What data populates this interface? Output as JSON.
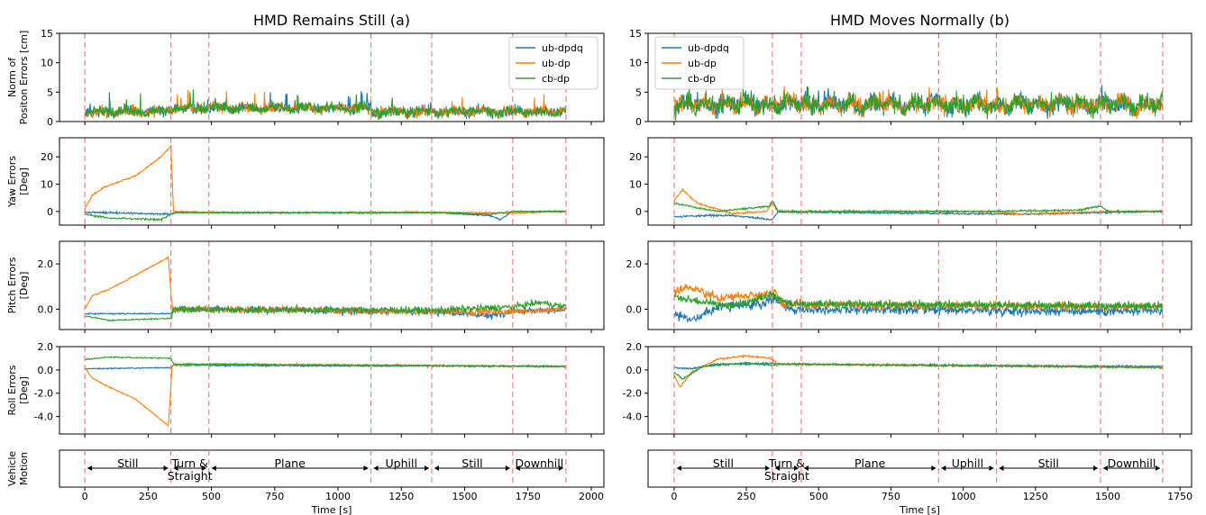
{
  "chart_data": {
    "type": "line",
    "columns": [
      {
        "title": "HMD Remains Still (a)",
        "xlim": [
          -100,
          2050
        ],
        "xticks": [
          0,
          250,
          500,
          750,
          1000,
          1250,
          1500,
          1750,
          2000
        ],
        "xlabel": "Time [s]",
        "boundaries": [
          0,
          340,
          490,
          1130,
          1370,
          1690,
          1900
        ],
        "segments": [
          "Still",
          "Turn & Straight",
          "Plane",
          "Uphill",
          "Still",
          "Downhill"
        ],
        "legend_position": "top-right"
      },
      {
        "title": "HMD Moves Normally (b)",
        "xlim": [
          -90,
          1790
        ],
        "xticks": [
          0,
          250,
          500,
          750,
          1000,
          1250,
          1500,
          1750
        ],
        "xlabel": "Time [s]",
        "boundaries": [
          0,
          340,
          440,
          915,
          1115,
          1475,
          1690
        ],
        "segments": [
          "Still",
          "Turn & Straight",
          "Plane",
          "Uphill",
          "Still",
          "Downhill"
        ],
        "legend_position": "top-left"
      }
    ],
    "rows": [
      {
        "ylabel": [
          "Norm of",
          "Positon Errors [cm]"
        ],
        "ylim": [
          0,
          15
        ],
        "yticks": [
          "0",
          "5",
          "10",
          "15"
        ],
        "ytick_values": [
          0,
          5,
          10,
          15
        ]
      },
      {
        "ylabel": [
          "Yaw Errors",
          "[Deg]"
        ],
        "ylim": [
          -5,
          27
        ],
        "yticks": [
          "0",
          "10",
          "20"
        ],
        "ytick_values": [
          0,
          10,
          20
        ]
      },
      {
        "ylabel": [
          "Pitch Errors",
          "[Deg]"
        ],
        "ylim": [
          -0.9,
          3.0
        ],
        "yticks": [
          "0.0",
          "2.0"
        ],
        "ytick_values": [
          0,
          2
        ]
      },
      {
        "ylabel": [
          "Roll Errors",
          "[Deg]"
        ],
        "ylim": [
          -5.5,
          2.0
        ],
        "yticks": [
          "2.0",
          "0.0",
          "-2.0",
          "-4.0"
        ],
        "ytick_values": [
          2,
          0,
          -2,
          -4
        ]
      }
    ],
    "motion_row_label": [
      "Vehicle",
      "Motion"
    ],
    "series": [
      {
        "name": "ub-dpdq",
        "color": "#1f77b4"
      },
      {
        "name": "ub-dp",
        "color": "#ff7f0e"
      },
      {
        "name": "cb-dp",
        "color": "#2ca02c"
      }
    ],
    "boundary_color": "#f08080",
    "grid": false
  }
}
